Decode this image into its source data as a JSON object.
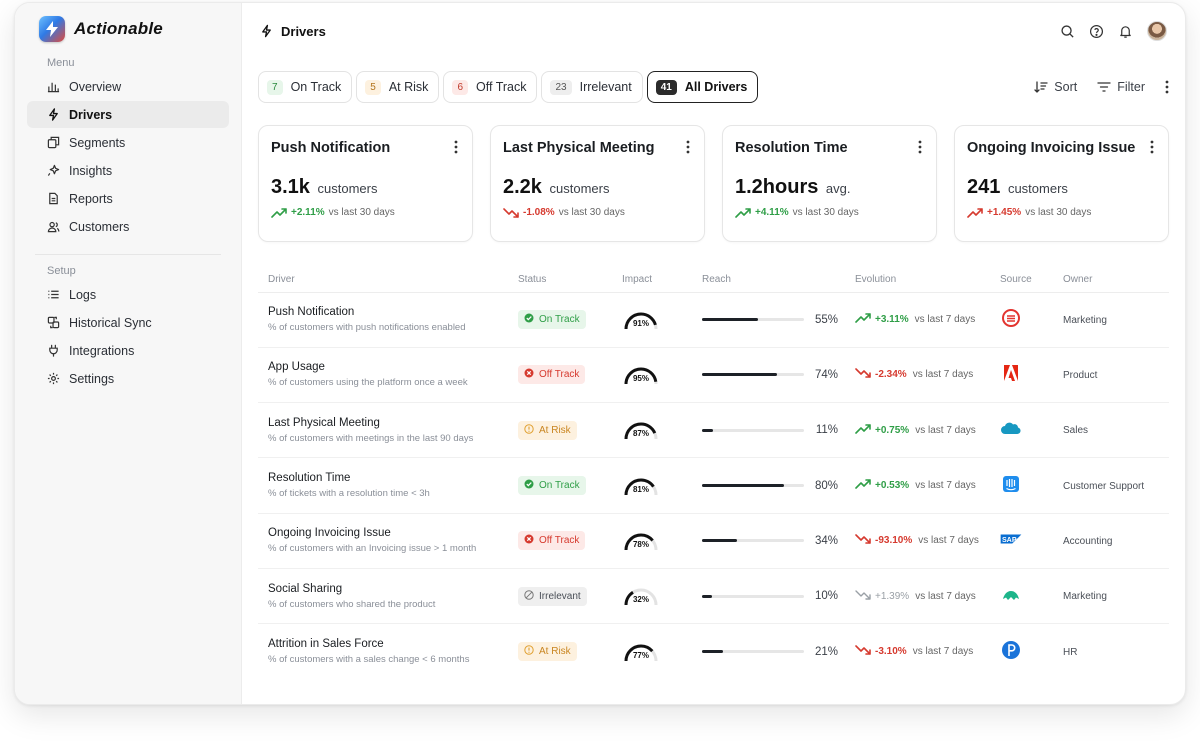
{
  "app": {
    "name": "Actionable"
  },
  "sidebar": {
    "menu_label": "Menu",
    "menu_items": [
      {
        "label": "Overview",
        "icon": "bar-chart-icon"
      },
      {
        "label": "Drivers",
        "icon": "lightning-icon",
        "active": true
      },
      {
        "label": "Segments",
        "icon": "segments-icon"
      },
      {
        "label": "Insights",
        "icon": "sparkle-icon"
      },
      {
        "label": "Reports",
        "icon": "document-icon"
      },
      {
        "label": "Customers",
        "icon": "users-icon"
      }
    ],
    "setup_label": "Setup",
    "setup_items": [
      {
        "label": "Logs",
        "icon": "list-icon"
      },
      {
        "label": "Historical Sync",
        "icon": "sync-icon"
      },
      {
        "label": "Integrations",
        "icon": "plug-icon"
      },
      {
        "label": "Settings",
        "icon": "gear-icon"
      }
    ]
  },
  "header": {
    "title": "Drivers"
  },
  "tabs": [
    {
      "count": "7",
      "label": "On Track",
      "tone": "green"
    },
    {
      "count": "5",
      "label": "At Risk",
      "tone": "amber"
    },
    {
      "count": "6",
      "label": "Off Track",
      "tone": "red"
    },
    {
      "count": "23",
      "label": "Irrelevant",
      "tone": "gray"
    },
    {
      "count": "41",
      "label": "All Drivers",
      "tone": "dark",
      "active": true
    }
  ],
  "actions": {
    "sort": "Sort",
    "filter": "Filter"
  },
  "cards": [
    {
      "title": "Push Notification",
      "value": "3.1k",
      "unit": "customers",
      "delta": "+2.11%",
      "trend": "up",
      "period": "vs last 30 days"
    },
    {
      "title": "Last Physical Meeting",
      "value": "2.2k",
      "unit": "customers",
      "delta": "-1.08%",
      "trend": "down",
      "period": "vs last 30 days"
    },
    {
      "title": "Resolution Time",
      "value": "1.2hours",
      "unit": "avg.",
      "delta": "+4.11%",
      "trend": "up",
      "period": "vs last 30 days"
    },
    {
      "title": "Ongoing Invoicing Issue",
      "value": "241",
      "unit": "customers",
      "delta": "+1.45%",
      "trend": "down",
      "period": "vs last 30 days"
    }
  ],
  "table": {
    "columns": [
      "Driver",
      "Status",
      "Impact",
      "Reach",
      "Evolution",
      "Source",
      "Owner"
    ],
    "rows": [
      {
        "name": "Push Notification",
        "desc": "% of customers with push notifications enabled",
        "status": "On Track",
        "tone": "green",
        "impact": "91%",
        "impact_value": 91,
        "reach": "55%",
        "reach_value": 55,
        "evo": "+3.11%",
        "evo_trend": "up",
        "evo_period": "vs last 7 days",
        "source": "Todoist",
        "source_icon": "todoist-icon",
        "owner": "Marketing"
      },
      {
        "name": "App Usage",
        "desc": "% of customers using the platform once a week",
        "status": "Off Track",
        "tone": "red",
        "impact": "95%",
        "impact_value": 95,
        "reach": "74%",
        "reach_value": 74,
        "evo": "-2.34%",
        "evo_trend": "down",
        "evo_period": "vs last 7 days",
        "source": "Adobe",
        "source_icon": "adobe-icon",
        "owner": "Product"
      },
      {
        "name": "Last Physical Meeting",
        "desc": "% of customers with meetings in the last 90 days",
        "status": "At Risk",
        "tone": "amber",
        "impact": "87%",
        "impact_value": 87,
        "reach": "11%",
        "reach_value": 11,
        "evo": "+0.75%",
        "evo_trend": "up",
        "evo_period": "vs last 7 days",
        "source": "Salesforce",
        "source_icon": "salesforce-icon",
        "owner": "Sales"
      },
      {
        "name": "Resolution Time",
        "desc": "% of tickets with a resolution time < 3h",
        "status": "On Track",
        "tone": "green",
        "impact": "81%",
        "impact_value": 81,
        "reach": "80%",
        "reach_value": 80,
        "evo": "+0.53%",
        "evo_trend": "up",
        "evo_period": "vs last 7 days",
        "source": "Intercom",
        "source_icon": "intercom-icon",
        "owner": "Customer Support"
      },
      {
        "name": "Ongoing Invoicing Issue",
        "desc": "% of customers with an Invoicing issue > 1 month",
        "status": "Off Track",
        "tone": "red",
        "impact": "78%",
        "impact_value": 78,
        "reach": "34%",
        "reach_value": 34,
        "evo": "-93.10%",
        "evo_trend": "down",
        "evo_period": "vs last 7 days",
        "source": "SAP",
        "source_icon": "sap-icon",
        "owner": "Accounting"
      },
      {
        "name": "Social Sharing",
        "desc": "% of customers who shared the product",
        "status": "Irrelevant",
        "tone": "gray",
        "impact": "32%",
        "impact_value": 32,
        "reach": "10%",
        "reach_value": 10,
        "evo": "+1.39%",
        "evo_trend": "neutral",
        "evo_period": "vs last 7 days",
        "source": "Hootsuite",
        "source_icon": "hootsuite-icon",
        "owner": "Marketing"
      },
      {
        "name": "Attrition in Sales Force",
        "desc": "% of customers with a sales change < 6 months",
        "status": "At Risk",
        "tone": "amber",
        "impact": "77%",
        "impact_value": 77,
        "reach": "21%",
        "reach_value": 21,
        "evo": "-3.10%",
        "evo_trend": "down",
        "evo_period": "vs last 7 days",
        "source": "Pipedrive",
        "source_icon": "pipedrive-icon",
        "owner": "HR"
      }
    ]
  },
  "colors": {
    "up": "#2f9e47",
    "down": "#d63a2f",
    "neutral": "#9aa0a6",
    "accent_dark": "#1d2127"
  }
}
